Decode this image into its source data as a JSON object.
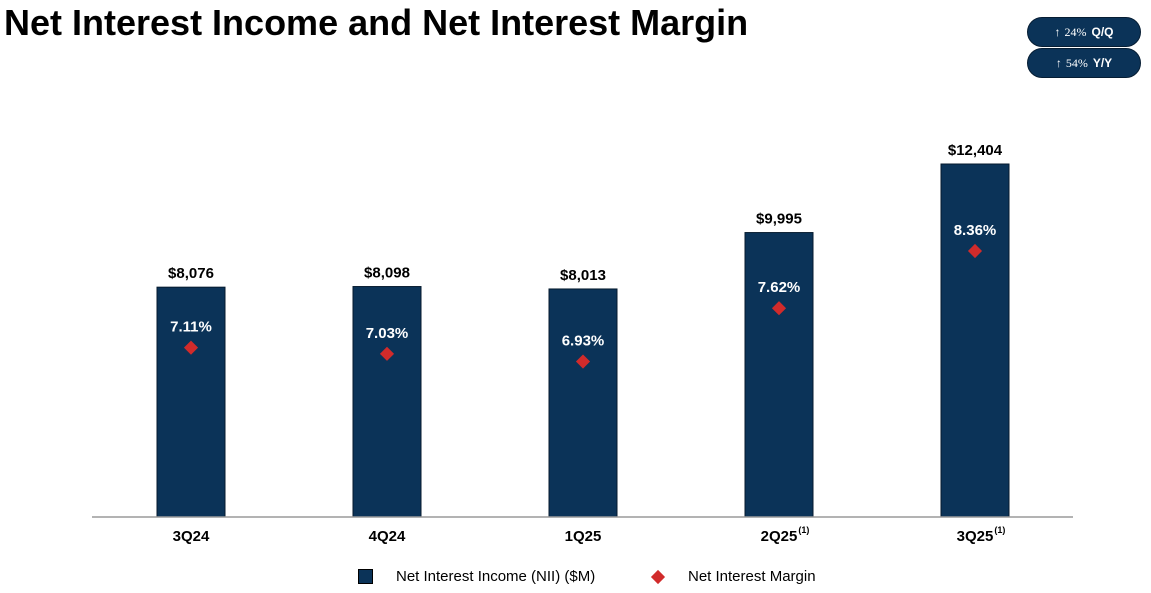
{
  "title": "Net Interest Income and Net Interest Margin",
  "badges": [
    {
      "arrow": "↑",
      "value": "24%",
      "label": "Q/Q"
    },
    {
      "arrow": "↑",
      "value": "54%",
      "label": "Y/Y"
    }
  ],
  "colors": {
    "bar": "#0b3358",
    "diamond": "#d12b2b",
    "axis": "#9a9a9a"
  },
  "legend": {
    "bar_label": "Net Interest Income (NII) ($M)",
    "marker_label": "Net Interest Margin"
  },
  "chart_data": {
    "type": "bar",
    "title": "Net Interest Income and Net Interest Margin",
    "categories": [
      "3Q24",
      "4Q24",
      "1Q25",
      "2Q25",
      "3Q25"
    ],
    "category_footnotes": [
      "",
      "",
      "",
      "(1)",
      "(1)"
    ],
    "series": [
      {
        "name": "Net Interest Income (NII) ($M)",
        "type": "bar",
        "values": [
          8076,
          8098,
          8013,
          9995,
          12404
        ],
        "labels": [
          "$8,076",
          "$8,098",
          "$8,013",
          "$9,995",
          "$12,404"
        ]
      },
      {
        "name": "Net Interest Margin",
        "type": "scatter",
        "marker": "diamond",
        "values": [
          7.11,
          7.03,
          6.93,
          7.62,
          8.36
        ],
        "labels": [
          "7.11%",
          "7.03%",
          "6.93%",
          "7.62%",
          "8.36%"
        ]
      }
    ],
    "ylim": [
      0,
      12404
    ],
    "nim_range": [
      5.76,
      8.36
    ],
    "xlabel": "",
    "ylabel": "",
    "grid": false,
    "legend_position": "bottom"
  }
}
